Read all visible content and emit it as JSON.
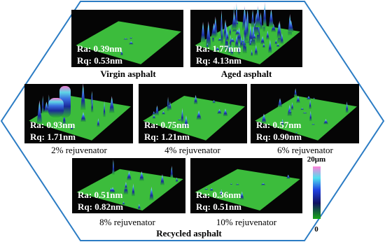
{
  "panels": [
    {
      "caption": "Virgin asphalt",
      "ra": "Ra: 0.39nm",
      "rq": "Rq: 0.53nm"
    },
    {
      "caption": "Aged asphalt",
      "ra": "Ra: 1.77nm",
      "rq": "Rq: 4.13nm"
    },
    {
      "caption": "2% rejuvenator",
      "ra": "Ra: 0.93nm",
      "rq": "Rq: 1.71nm"
    },
    {
      "caption": "4% rejuvenator",
      "ra": "Ra: 0.75nm",
      "rq": "Rq: 1.21nm"
    },
    {
      "caption": "6% rejuvenator",
      "ra": "Ra: 0.57nm",
      "rq": "Rq: 0.90nm"
    },
    {
      "caption": "8% rejuvenator",
      "ra": "Ra: 0.51nm",
      "rq": "Rq: 0.82nm"
    },
    {
      "caption": "10% rejuvenator",
      "ra": "Ra: 0.36nm",
      "rq": "Rq: 0.51nm"
    }
  ],
  "group_label": "Recycled asphalt",
  "color_scale": {
    "max": "20μm",
    "min": "0"
  }
}
